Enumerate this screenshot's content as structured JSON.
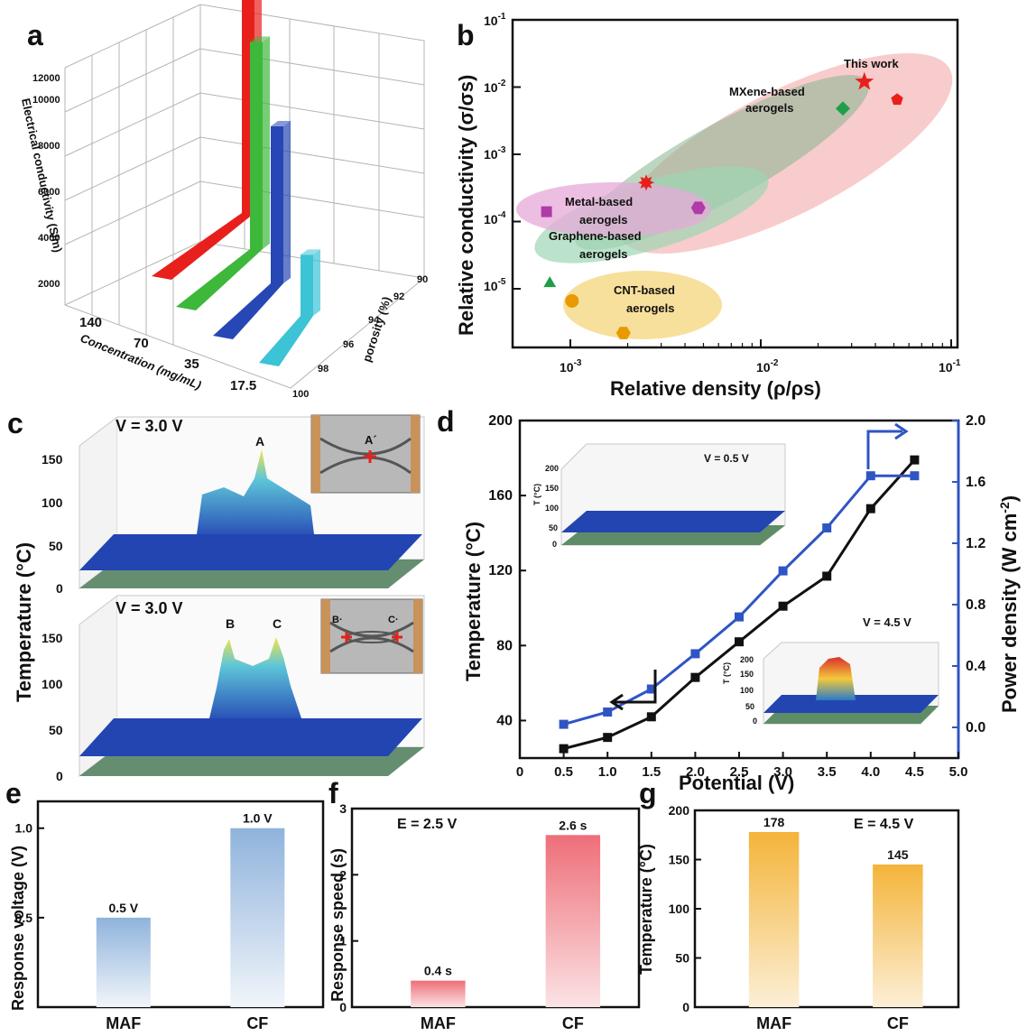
{
  "panels": {
    "a": "a",
    "b": "b",
    "c": "c",
    "d": "d",
    "e": "e",
    "f": "f",
    "g": "g"
  },
  "chart_data": [
    {
      "panel": "a",
      "type": "bar",
      "projection": "3d",
      "zlabel": "Electrical conductivity (S/m)",
      "xlabel": "Concentration (mg/mL)",
      "ylabel": "porosity (%)",
      "z_ticks": [
        "2000",
        "4000",
        "6000",
        "8000",
        "10000",
        "12000"
      ],
      "x_ticks": [
        "140",
        "70",
        "35",
        "17.5"
      ],
      "y_ticks": [
        "100",
        "98",
        "96",
        "94",
        "92",
        "90"
      ],
      "series": [
        {
          "concentration": "140",
          "porosity": 90.5,
          "conductivity": 12000,
          "color": "#e8201c"
        },
        {
          "concentration": "70",
          "porosity": 93.5,
          "conductivity": 9500,
          "color": "#3db83a"
        },
        {
          "concentration": "35",
          "porosity": 96.5,
          "conductivity": 7200,
          "color": "#2747b5"
        },
        {
          "concentration": "17.5",
          "porosity": 98.5,
          "conductivity": 2800,
          "color": "#3cc3d6"
        }
      ]
    },
    {
      "panel": "b",
      "type": "scatter",
      "xlabel": "Relative density (ρ/ρs)",
      "ylabel": "Relative conductivity (σ/σs)",
      "x_scale": "log",
      "y_scale": "log",
      "xlim": [
        0.0005,
        0.1
      ],
      "ylim": [
        3e-06,
        0.1
      ],
      "x_ticks": [
        "10-3",
        "10-2",
        "10-1"
      ],
      "y_ticks": [
        "10-1",
        "10-2",
        "10-3",
        "10-4",
        "10-5"
      ],
      "groups": [
        {
          "label": "This work",
          "color": "#e8201c"
        },
        {
          "label": "MXene-based aerogels",
          "color": "#e8201c"
        },
        {
          "label": "Metal-based aerogels",
          "color": "#b03aa8"
        },
        {
          "label": "Graphene-based aerogels",
          "color": "#1f9e4a"
        },
        {
          "label": "CNT-based aerogels",
          "color": "#e89a00"
        }
      ],
      "points": [
        {
          "x": 0.035,
          "y": 0.012,
          "marker": "star",
          "color": "#e8201c"
        },
        {
          "x": 0.052,
          "y": 0.0065,
          "marker": "pentagon",
          "color": "#e8201c"
        },
        {
          "x": 0.0025,
          "y": 0.00038,
          "marker": "burst",
          "color": "#e8201c"
        },
        {
          "x": 0.027,
          "y": 0.0048,
          "marker": "diamond",
          "color": "#1f9e4a"
        },
        {
          "x": 0.00075,
          "y": 0.00014,
          "marker": "square",
          "color": "#b03aa8"
        },
        {
          "x": 0.0047,
          "y": 0.00016,
          "marker": "hexagon",
          "color": "#b03aa8"
        },
        {
          "x": 0.00078,
          "y": 1.2e-05,
          "marker": "triangle",
          "color": "#1f9e4a"
        },
        {
          "x": 0.00102,
          "y": 6.6e-06,
          "marker": "circle",
          "color": "#e89a00"
        },
        {
          "x": 0.0019,
          "y": 2.2e-06,
          "marker": "hexagon",
          "color": "#e89a00"
        }
      ]
    },
    {
      "panel": "c",
      "type": "surface-3d",
      "ylabel": "Temperature (°C)",
      "z_ticks": [
        "0",
        "50",
        "100",
        "150"
      ],
      "top": {
        "title": "V = 3.0 V",
        "peak_labels": [
          "A"
        ],
        "inset_labels": [
          "A´"
        ]
      },
      "bottom": {
        "title": "V = 3.0 V",
        "peak_labels": [
          "B",
          "C"
        ],
        "inset_labels": [
          "B·",
          "C·"
        ]
      }
    },
    {
      "panel": "d",
      "type": "line",
      "xlabel": "Potential (V)",
      "ylabel": "Temperature (°C)",
      "y2label": "Power density (W cm-2)",
      "xlim": [
        0,
        5.0
      ],
      "ylim": [
        20,
        200
      ],
      "y2lim": [
        -0.2,
        2.0
      ],
      "x_ticks": [
        "0",
        "0.5",
        "1.0",
        "1.5",
        "2.0",
        "2.5",
        "3.0",
        "3.5",
        "4.0",
        "4.5",
        "5.0"
      ],
      "y_ticks": [
        "40",
        "80",
        "120",
        "160",
        "200"
      ],
      "y2_ticks": [
        "0.0",
        "0.4",
        "0.8",
        "1.2",
        "1.6",
        "2.0"
      ],
      "x": [
        0.5,
        1.0,
        1.5,
        2.0,
        2.5,
        3.0,
        3.5,
        4.0,
        4.5
      ],
      "series": [
        {
          "axis": "left",
          "color": "#111111",
          "values": [
            25,
            31,
            42,
            63,
            82,
            101,
            117,
            153,
            179
          ]
        },
        {
          "axis": "right",
          "color": "#2f55c4",
          "values": [
            0.02,
            0.1,
            0.25,
            0.48,
            0.72,
            1.02,
            1.3,
            1.64,
            1.64
          ]
        }
      ],
      "insets": [
        {
          "title": "V = 0.5 V",
          "zlabel": "T (°C)",
          "z_ticks": [
            "0",
            "50",
            "100",
            "150",
            "200"
          ]
        },
        {
          "title": "V = 4.5 V",
          "zlabel": "T (°C)",
          "z_ticks": [
            "0",
            "50",
            "100",
            "150",
            "200"
          ]
        }
      ]
    },
    {
      "panel": "e",
      "type": "bar",
      "ylabel": "Response voltage (V)",
      "categories": [
        "MAF",
        "CF"
      ],
      "values": [
        0.5,
        1.0
      ],
      "data_labels": [
        "0.5 V",
        "1.0 V"
      ],
      "ylim": [
        0,
        1.15
      ],
      "y_ticks": [
        "0.5",
        "1.0"
      ],
      "color": "#8fb3dc"
    },
    {
      "panel": "f",
      "type": "bar",
      "ylabel": "Response speed (s)",
      "annotation": "E = 2.5 V",
      "categories": [
        "MAF",
        "CF"
      ],
      "values": [
        0.4,
        2.6
      ],
      "data_labels": [
        "0.4 s",
        "2.6 s"
      ],
      "ylim": [
        0,
        3
      ],
      "y_ticks": [
        "0",
        "1",
        "2",
        "3"
      ],
      "color": "#ee6e78"
    },
    {
      "panel": "g",
      "type": "bar",
      "ylabel": "Temperature (°C)",
      "annotation": "E = 4.5 V",
      "categories": [
        "MAF",
        "CF"
      ],
      "values": [
        178,
        145
      ],
      "data_labels": [
        "178",
        "145"
      ],
      "ylim": [
        0,
        200
      ],
      "y_ticks": [
        "0",
        "50",
        "100",
        "150",
        "200"
      ],
      "color": "#f4b43a"
    }
  ]
}
